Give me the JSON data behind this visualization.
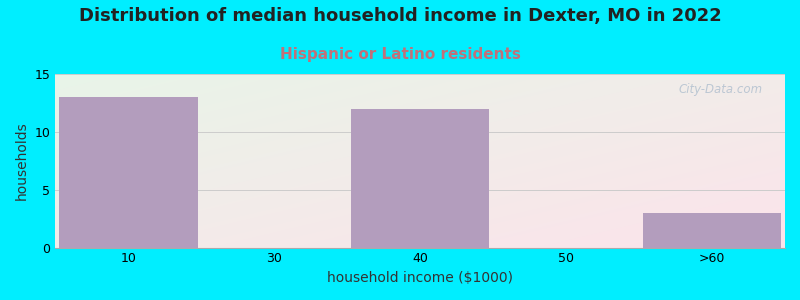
{
  "title": "Distribution of median household income in Dexter, MO in 2022",
  "subtitle": "Hispanic or Latino residents",
  "categories": [
    "10",
    "30",
    "40",
    "50",
    ">60"
  ],
  "values": [
    13,
    0,
    12,
    0,
    3
  ],
  "bar_color": "#b39dbd",
  "xlabel": "household income ($1000)",
  "ylabel": "households",
  "ylim": [
    0,
    15
  ],
  "yticks": [
    0,
    5,
    10,
    15
  ],
  "background_outer": "#00eeff",
  "title_fontsize": 13,
  "subtitle_fontsize": 11,
  "subtitle_color": "#c0717a",
  "axis_label_fontsize": 10,
  "tick_fontsize": 9,
  "watermark": "City-Data.com",
  "gradient_left": "#e8f5e9",
  "gradient_right": "#fce4ec"
}
